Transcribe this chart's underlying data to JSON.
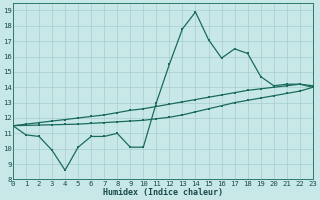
{
  "xlabel": "Humidex (Indice chaleur)",
  "bg_color": "#c8e8e8",
  "grid_color": "#a8cccc",
  "line_color": "#1a6b5a",
  "xlim": [
    0,
    23
  ],
  "ylim": [
    8,
    19.5
  ],
  "xticks": [
    0,
    1,
    2,
    3,
    4,
    5,
    6,
    7,
    8,
    9,
    10,
    11,
    12,
    13,
    14,
    15,
    16,
    17,
    18,
    19,
    20,
    21,
    22,
    23
  ],
  "yticks": [
    8,
    9,
    10,
    11,
    12,
    13,
    14,
    15,
    16,
    17,
    18,
    19
  ],
  "line1_y": [
    11.5,
    10.9,
    10.8,
    9.9,
    8.6,
    10.1,
    10.8,
    10.8,
    11.0,
    10.1,
    10.1,
    13.0,
    15.5,
    17.8,
    18.9,
    17.1,
    15.9,
    16.5,
    16.2,
    14.7,
    14.1,
    14.2,
    14.2,
    14.0
  ],
  "line2_y": [
    11.5,
    11.6,
    11.7,
    11.8,
    11.9,
    12.0,
    12.1,
    12.2,
    12.35,
    12.5,
    12.6,
    12.75,
    12.9,
    13.05,
    13.2,
    13.35,
    13.5,
    13.65,
    13.8,
    13.9,
    14.0,
    14.1,
    14.2,
    14.1
  ],
  "line3_y": [
    11.5,
    11.52,
    11.54,
    11.56,
    11.58,
    11.6,
    11.65,
    11.7,
    11.75,
    11.8,
    11.85,
    11.95,
    12.05,
    12.2,
    12.4,
    12.6,
    12.8,
    13.0,
    13.15,
    13.3,
    13.45,
    13.6,
    13.75,
    14.0
  ],
  "xlabel_fontsize": 6.0,
  "tick_fontsize": 5.2
}
